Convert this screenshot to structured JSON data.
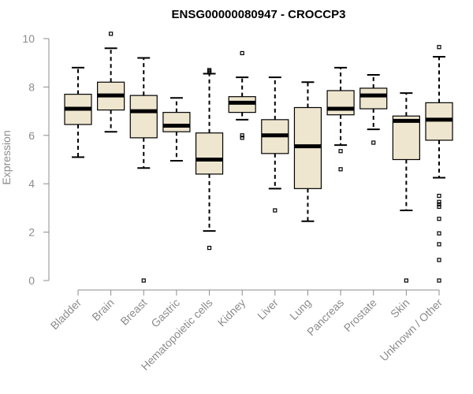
{
  "chart_data": {
    "type": "boxplot",
    "title": "ENSG00000080947 - CROCCP3",
    "xlabel": "",
    "ylabel": "Expression",
    "ylim": [
      0,
      10
    ],
    "yticks": [
      0,
      2,
      4,
      6,
      8,
      10
    ],
    "box_fill": "#efe6cf",
    "categories": [
      "Bladder",
      "Brain",
      "Breast",
      "Gastric",
      "Hematopoietic cells",
      "Kidney",
      "Liver",
      "Lung",
      "Pancreas",
      "Prostate",
      "Skin",
      "Unknown / Other"
    ],
    "boxes": [
      {
        "name": "Bladder",
        "whislo": 5.1,
        "q1": 6.45,
        "med": 7.1,
        "q3": 7.7,
        "whishi": 8.8,
        "fliers": []
      },
      {
        "name": "Brain",
        "whislo": 6.15,
        "q1": 7.05,
        "med": 7.65,
        "q3": 8.2,
        "whishi": 9.6,
        "fliers": [
          10.2
        ]
      },
      {
        "name": "Breast",
        "whislo": 4.65,
        "q1": 5.9,
        "med": 7.0,
        "q3": 7.65,
        "whishi": 9.2,
        "fliers": [
          0.0
        ]
      },
      {
        "name": "Gastric",
        "whislo": 4.95,
        "q1": 6.15,
        "med": 6.4,
        "q3": 6.95,
        "whishi": 7.55,
        "fliers": []
      },
      {
        "name": "Hematopoietic cells",
        "whislo": 2.05,
        "q1": 4.4,
        "med": 5.0,
        "q3": 6.1,
        "whishi": 8.55,
        "fliers": [
          1.35,
          8.6,
          8.65,
          8.7
        ]
      },
      {
        "name": "Kidney",
        "whislo": 6.65,
        "q1": 6.95,
        "med": 7.35,
        "q3": 7.6,
        "whishi": 8.4,
        "fliers": [
          5.9,
          6.0,
          9.4
        ]
      },
      {
        "name": "Liver",
        "whislo": 3.8,
        "q1": 5.25,
        "med": 6.0,
        "q3": 6.65,
        "whishi": 8.4,
        "fliers": [
          2.9
        ]
      },
      {
        "name": "Lung",
        "whislo": 2.45,
        "q1": 3.8,
        "med": 5.55,
        "q3": 7.15,
        "whishi": 8.2,
        "fliers": []
      },
      {
        "name": "Pancreas",
        "whislo": 5.6,
        "q1": 6.85,
        "med": 7.1,
        "q3": 7.85,
        "whishi": 8.8,
        "fliers": [
          4.6,
          5.35
        ]
      },
      {
        "name": "Prostate",
        "whislo": 6.25,
        "q1": 7.1,
        "med": 7.65,
        "q3": 7.95,
        "whishi": 8.5,
        "fliers": [
          5.7
        ]
      },
      {
        "name": "Skin",
        "whislo": 2.9,
        "q1": 5.0,
        "med": 6.6,
        "q3": 6.8,
        "whishi": 7.75,
        "fliers": [
          0.0
        ]
      },
      {
        "name": "Unknown / Other",
        "whislo": 4.25,
        "q1": 5.8,
        "med": 6.65,
        "q3": 7.35,
        "whishi": 9.25,
        "fliers": [
          0.0,
          0.85,
          1.5,
          1.95,
          2.55,
          3.05,
          3.15,
          3.25,
          3.5,
          9.65
        ]
      }
    ]
  }
}
